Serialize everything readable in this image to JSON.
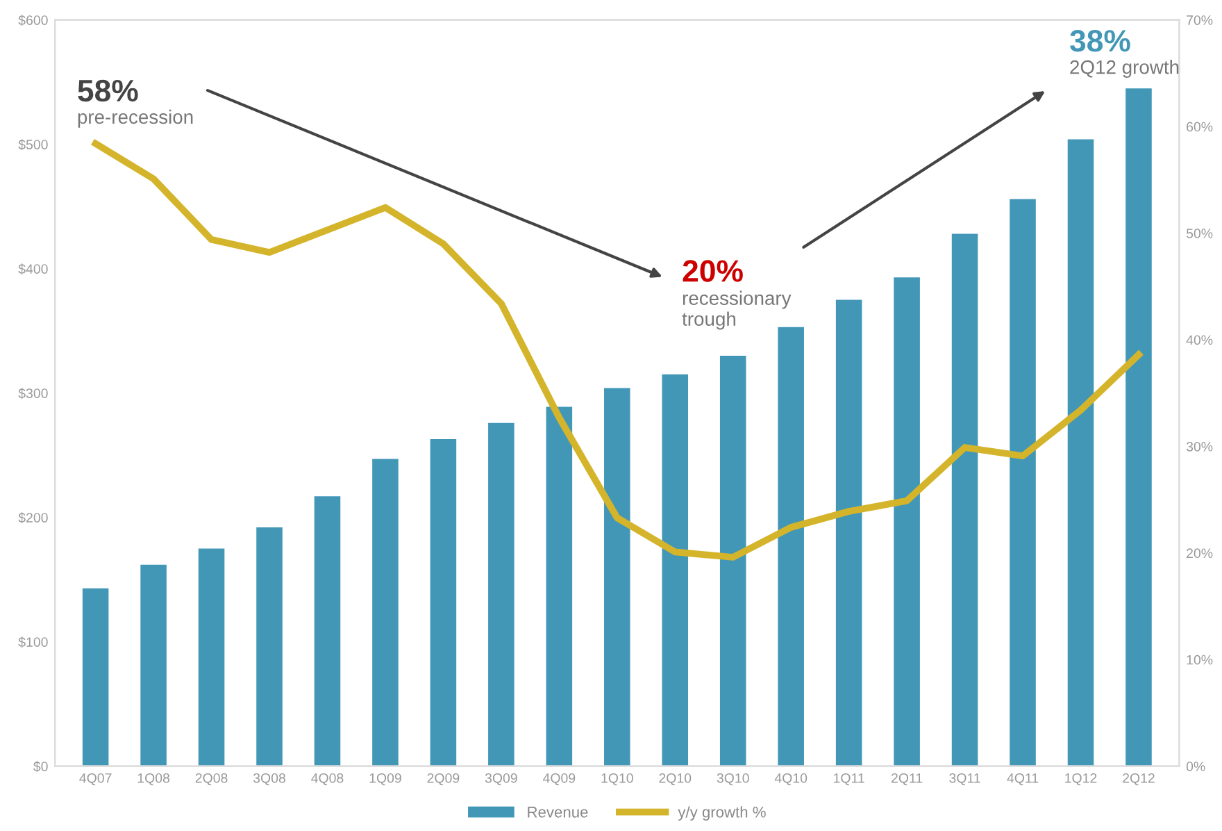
{
  "chart_data": {
    "type": "bar",
    "categories": [
      "4Q07",
      "1Q08",
      "2Q08",
      "3Q08",
      "4Q08",
      "1Q09",
      "2Q09",
      "3Q09",
      "4Q09",
      "1Q10",
      "2Q10",
      "3Q10",
      "4Q10",
      "1Q11",
      "2Q11",
      "3Q11",
      "4Q11",
      "1Q12",
      "2Q12"
    ],
    "series": [
      {
        "name": "Revenue",
        "color": "#4297b7",
        "values": [
          143,
          162,
          175,
          192,
          217,
          247,
          263,
          276,
          289,
          304,
          315,
          330,
          353,
          375,
          393,
          428,
          456,
          504,
          545
        ]
      },
      {
        "name": "y/y growth %",
        "type": "line",
        "axis": "y2",
        "color": "#d4b42a",
        "values": [
          58.4,
          55.1,
          49.4,
          48.2,
          50.3,
          52.4,
          49.0,
          43.4,
          32.7,
          23.3,
          20.1,
          19.6,
          22.4,
          23.9,
          24.9,
          29.9,
          29.1,
          33.4,
          38.6
        ]
      }
    ],
    "ylim": [
      0,
      600
    ],
    "yticks": [
      {
        "value": 0,
        "label": "$0"
      },
      {
        "value": 100,
        "label": "$100"
      },
      {
        "value": 200,
        "label": "$200"
      },
      {
        "value": 300,
        "label": "$300"
      },
      {
        "value": 400,
        "label": "$400"
      },
      {
        "value": 500,
        "label": "$500"
      },
      {
        "value": 600,
        "label": "$600"
      }
    ],
    "y2lim": [
      0,
      70
    ],
    "y2ticks": [
      {
        "value": 0,
        "label": "0%"
      },
      {
        "value": 10,
        "label": "10%"
      },
      {
        "value": 20,
        "label": "20%"
      },
      {
        "value": 30,
        "label": "30%"
      },
      {
        "value": 40,
        "label": "40%"
      },
      {
        "value": 50,
        "label": "50%"
      },
      {
        "value": 60,
        "label": "60%"
      },
      {
        "value": 70,
        "label": "70%"
      }
    ],
    "annotations": [
      "58%",
      "pre-recession",
      "20%",
      "recessionary trough",
      "38%",
      "2Q12 growth"
    ],
    "legend": "bottom",
    "grid": false,
    "line_style": "solid",
    "marker": "none"
  }
}
